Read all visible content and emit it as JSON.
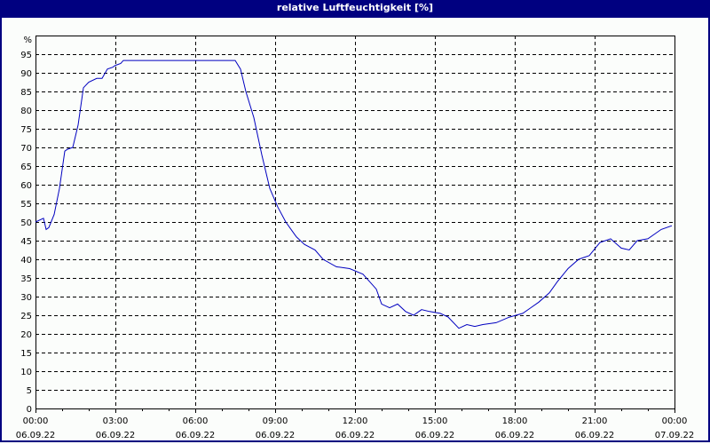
{
  "window": {
    "title": "relative Luftfeuchtigkeit [%]"
  },
  "chart_data": {
    "type": "line",
    "title": "relative Luftfeuchtigkeit [%]",
    "xlabel": "",
    "ylabel": "%",
    "ylim": [
      0,
      100
    ],
    "xlim_hours": [
      0,
      24
    ],
    "grid": true,
    "legend": null,
    "y_ticks": [
      0,
      5,
      10,
      15,
      20,
      25,
      30,
      35,
      40,
      45,
      50,
      55,
      60,
      65,
      70,
      75,
      80,
      85,
      90,
      95
    ],
    "y_unit_label": "%",
    "x_ticks": [
      {
        "time": "00:00",
        "date": "06.09.22"
      },
      {
        "time": "03:00",
        "date": "06.09.22"
      },
      {
        "time": "06:00",
        "date": "06.09.22"
      },
      {
        "time": "09:00",
        "date": "06.09.22"
      },
      {
        "time": "12:00",
        "date": "06.09.22"
      },
      {
        "time": "15:00",
        "date": "06.09.22"
      },
      {
        "time": "18:00",
        "date": "06.09.22"
      },
      {
        "time": "21:00",
        "date": "06.09.22"
      },
      {
        "time": "00:00",
        "date": "07.09.22"
      }
    ],
    "series": [
      {
        "name": "relative Luftfeuchtigkeit",
        "color": "#0000c0",
        "x": [
          0,
          0.3,
          0.4,
          0.5,
          0.7,
          0.9,
          1.1,
          1.2,
          1.4,
          1.6,
          1.8,
          2.0,
          2.3,
          2.5,
          2.7,
          2.9,
          3.0,
          3.2,
          3.3,
          3.6,
          3.9,
          4.5,
          5.5,
          6.5,
          7.0,
          7.5,
          7.7,
          7.9,
          8.2,
          8.5,
          8.8,
          9.1,
          9.4,
          9.6,
          9.8,
          10.1,
          10.5,
          10.8,
          11.3,
          11.8,
          12.3,
          12.8,
          13.0,
          13.3,
          13.6,
          13.9,
          14.2,
          14.5,
          14.8,
          15.2,
          15.5,
          15.9,
          16.2,
          16.5,
          16.8,
          17.3,
          17.8,
          18.3,
          18.6,
          18.9,
          19.3,
          19.6,
          20.0,
          20.4,
          20.8,
          21.2,
          21.6,
          22.0,
          22.3,
          22.6,
          23.0,
          23.5,
          23.9
        ],
        "y": [
          50.0,
          51.0,
          48.0,
          48.5,
          52.0,
          59.0,
          69.0,
          69.5,
          70.0,
          76.0,
          86.0,
          87.5,
          88.5,
          88.5,
          91.0,
          91.5,
          92.0,
          92.5,
          93.3,
          93.3,
          93.3,
          93.3,
          93.3,
          93.3,
          93.3,
          93.3,
          91.0,
          85.0,
          78.0,
          68.0,
          59.0,
          54.0,
          50.0,
          48.0,
          46.0,
          44.0,
          42.5,
          40.0,
          38.0,
          37.5,
          36.0,
          32.0,
          28.0,
          27.0,
          28.0,
          26.0,
          25.0,
          26.5,
          26.0,
          25.5,
          24.5,
          21.5,
          22.5,
          22.0,
          22.5,
          23.0,
          24.5,
          25.5,
          27.0,
          28.5,
          31.0,
          34.0,
          37.5,
          40.0,
          41.0,
          44.5,
          45.5,
          43.0,
          42.5,
          45.0,
          45.5,
          48.0,
          49.0
        ]
      }
    ]
  }
}
